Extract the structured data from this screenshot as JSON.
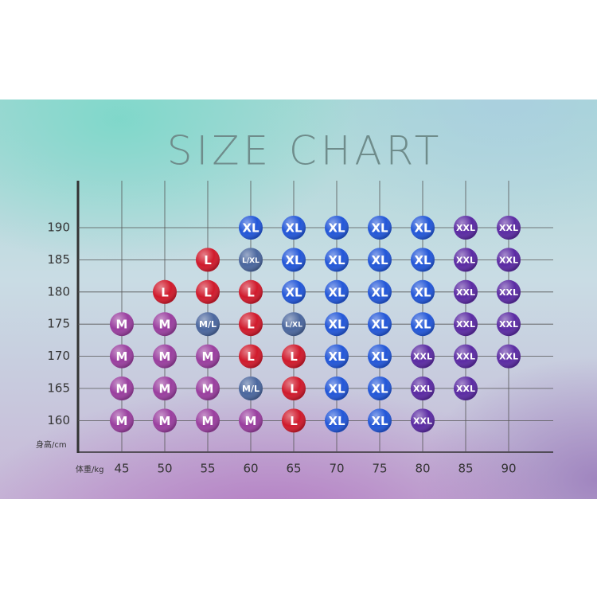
{
  "title": "SIZE CHART",
  "y_axis_label": "身高/cm",
  "x_axis_label": "体重/kg",
  "weights": [
    "45",
    "50",
    "55",
    "60",
    "65",
    "70",
    "75",
    "80",
    "85",
    "90"
  ],
  "heights": [
    "190",
    "185",
    "180",
    "175",
    "170",
    "165",
    "160"
  ],
  "rows": [
    [
      null,
      null,
      null,
      {
        "size": "XL",
        "color": "#2357d8"
      },
      {
        "size": "XL",
        "color": "#2357d8"
      },
      {
        "size": "XL",
        "color": "#2357d8"
      },
      {
        "size": "XL",
        "color": "#2357d8"
      },
      {
        "size": "XL",
        "color": "#2357d8"
      },
      {
        "size": "XXL",
        "color": "#5b2ba3"
      },
      {
        "size": "XXL",
        "color": "#5b2ba3"
      }
    ],
    [
      null,
      null,
      {
        "size": "L",
        "color": "#d01a2c"
      },
      {
        "size": "L/XL",
        "color": "#4b679e"
      },
      {
        "size": "XL",
        "color": "#2357d8"
      },
      {
        "size": "XL",
        "color": "#2357d8"
      },
      {
        "size": "XL",
        "color": "#2357d8"
      },
      {
        "size": "XL",
        "color": "#2357d8"
      },
      {
        "size": "XXL",
        "color": "#5b2ba3"
      },
      {
        "size": "XXL",
        "color": "#5b2ba3"
      }
    ],
    [
      null,
      {
        "size": "L",
        "color": "#d01a2c"
      },
      {
        "size": "L",
        "color": "#d01a2c"
      },
      {
        "size": "L",
        "color": "#d01a2c"
      },
      {
        "size": "XL",
        "color": "#2357d8"
      },
      {
        "size": "XL",
        "color": "#2357d8"
      },
      {
        "size": "XL",
        "color": "#2357d8"
      },
      {
        "size": "XL",
        "color": "#2357d8"
      },
      {
        "size": "XXL",
        "color": "#5b2ba3"
      },
      {
        "size": "XXL",
        "color": "#5b2ba3"
      }
    ],
    [
      {
        "size": "M",
        "color": "#9a3f9f"
      },
      {
        "size": "M",
        "color": "#9a3f9f"
      },
      {
        "size": "M/L",
        "color": "#4b679e"
      },
      {
        "size": "L",
        "color": "#d01a2c"
      },
      {
        "size": "L/XL",
        "color": "#4b679e"
      },
      {
        "size": "XL",
        "color": "#2357d8"
      },
      {
        "size": "XL",
        "color": "#2357d8"
      },
      {
        "size": "XL",
        "color": "#2357d8"
      },
      {
        "size": "XXL",
        "color": "#5b2ba3"
      },
      {
        "size": "XXL",
        "color": "#5b2ba3"
      }
    ],
    [
      {
        "size": "M",
        "color": "#9a3f9f"
      },
      {
        "size": "M",
        "color": "#9a3f9f"
      },
      {
        "size": "M",
        "color": "#9a3f9f"
      },
      {
        "size": "L",
        "color": "#d01a2c"
      },
      {
        "size": "L",
        "color": "#d01a2c"
      },
      {
        "size": "XL",
        "color": "#2357d8"
      },
      {
        "size": "XL",
        "color": "#2357d8"
      },
      {
        "size": "XXL",
        "color": "#5b2ba3"
      },
      {
        "size": "XXL",
        "color": "#5b2ba3"
      },
      {
        "size": "XXL",
        "color": "#5b2ba3"
      }
    ],
    [
      {
        "size": "M",
        "color": "#9a3f9f"
      },
      {
        "size": "M",
        "color": "#9a3f9f"
      },
      {
        "size": "M",
        "color": "#9a3f9f"
      },
      {
        "size": "M/L",
        "color": "#4b679e"
      },
      {
        "size": "L",
        "color": "#d01a2c"
      },
      {
        "size": "XL",
        "color": "#2357d8"
      },
      {
        "size": "XL",
        "color": "#2357d8"
      },
      {
        "size": "XXL",
        "color": "#5b2ba3"
      },
      {
        "size": "XXL",
        "color": "#5b2ba3"
      },
      null
    ],
    [
      {
        "size": "M",
        "color": "#9a3f9f"
      },
      {
        "size": "M",
        "color": "#9a3f9f"
      },
      {
        "size": "M",
        "color": "#9a3f9f"
      },
      {
        "size": "M",
        "color": "#9a3f9f"
      },
      {
        "size": "L",
        "color": "#d01a2c"
      },
      {
        "size": "XL",
        "color": "#2357d8"
      },
      {
        "size": "XL",
        "color": "#2357d8"
      },
      {
        "size": "XXL",
        "color": "#5b2ba3"
      },
      null,
      null
    ]
  ]
}
